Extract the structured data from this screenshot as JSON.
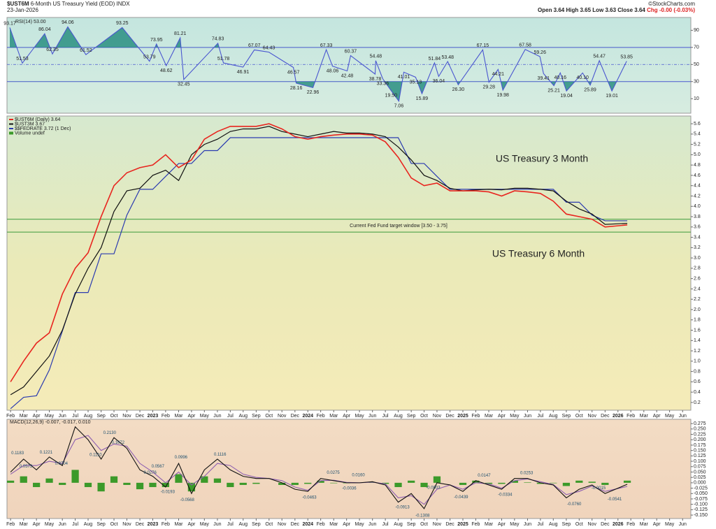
{
  "header": {
    "symbol": "$UST6M",
    "name": "6-Month US Treasury Yield (EOD)",
    "exchange": "INDX",
    "date": "23-Jan-2026",
    "credit": "©StockCharts.com",
    "quote": "Open 3.64 High 3.65 Low 3.63 Close 3.64",
    "change": "Chg -0.00 (-0.03%)"
  },
  "x_axis": {
    "xlim": [
      2022.06,
      2026.47
    ],
    "xticks": [
      {
        "value": 2022.083,
        "label": "Feb"
      },
      {
        "value": 2022.167,
        "label": "Mar"
      },
      {
        "value": 2022.25,
        "label": "Apr"
      },
      {
        "value": 2022.333,
        "label": "May"
      },
      {
        "value": 2022.417,
        "label": "Jun"
      },
      {
        "value": 2022.5,
        "label": "Jul"
      },
      {
        "value": 2022.583,
        "label": "Aug"
      },
      {
        "value": 2022.667,
        "label": "Sep"
      },
      {
        "value": 2022.75,
        "label": "Oct"
      },
      {
        "value": 2022.833,
        "label": "Nov"
      },
      {
        "value": 2022.917,
        "label": "Dec"
      },
      2023,
      {
        "value": 2023.083,
        "label": "Feb"
      },
      {
        "value": 2023.167,
        "label": "Mar"
      },
      {
        "value": 2023.25,
        "label": "Apr"
      },
      {
        "value": 2023.333,
        "label": "May"
      },
      {
        "value": 2023.417,
        "label": "Jun"
      },
      {
        "value": 2023.5,
        "label": "Jul"
      },
      {
        "value": 2023.583,
        "label": "Aug"
      },
      {
        "value": 2023.667,
        "label": "Sep"
      },
      {
        "value": 2023.75,
        "label": "Oct"
      },
      {
        "value": 2023.833,
        "label": "Nov"
      },
      {
        "value": 2023.917,
        "label": "Dec"
      },
      2024,
      {
        "value": 2024.083,
        "label": "Feb"
      },
      {
        "value": 2024.167,
        "label": "Mar"
      },
      {
        "value": 2024.25,
        "label": "Apr"
      },
      {
        "value": 2024.333,
        "label": "May"
      },
      {
        "value": 2024.417,
        "label": "Jun"
      },
      {
        "value": 2024.5,
        "label": "Jul"
      },
      {
        "value": 2024.583,
        "label": "Aug"
      },
      {
        "value": 2024.667,
        "label": "Sep"
      },
      {
        "value": 2024.75,
        "label": "Oct"
      },
      {
        "value": 2024.833,
        "label": "Nov"
      },
      {
        "value": 2024.917,
        "label": "Dec"
      },
      2025,
      {
        "value": 2025.083,
        "label": "Feb"
      },
      {
        "value": 2025.167,
        "label": "Mar"
      },
      {
        "value": 2025.25,
        "label": "Apr"
      },
      {
        "value": 2025.333,
        "label": "May"
      },
      {
        "value": 2025.417,
        "label": "Jun"
      },
      {
        "value": 2025.5,
        "label": "Jul"
      },
      {
        "value": 2025.583,
        "label": "Aug"
      },
      {
        "value": 2025.667,
        "label": "Sep"
      },
      {
        "value": 2025.75,
        "label": "Oct"
      },
      {
        "value": 2025.833,
        "label": "Nov"
      },
      {
        "value": 2025.917,
        "label": "Dec"
      },
      2026,
      {
        "value": 2026.083,
        "label": "Feb"
      },
      {
        "value": 2026.167,
        "label": "Mar"
      },
      {
        "value": 2026.25,
        "label": "Apr"
      },
      {
        "value": 2026.333,
        "label": "May"
      },
      {
        "value": 2026.417,
        "label": "Jun"
      }
    ]
  },
  "chart_data": [
    {
      "type": "line",
      "title": "RSI(14) 53.00",
      "ylim": [
        -7,
        105
      ],
      "yticks": [
        10,
        30,
        50,
        70,
        90
      ],
      "levels": [
        70,
        30
      ],
      "midline": 50,
      "fill_color": "#1f8a7a",
      "series": [
        {
          "color": "#4a56d0",
          "x": [
            2022.078,
            2022.159,
            2022.303,
            2022.353,
            2022.452,
            2022.569,
            2022.803,
            2022.979,
            2023.024,
            2023.087,
            2023.177,
            2023.2,
            2023.42,
            2023.456,
            2023.582,
            2023.655,
            2023.749,
            2023.907,
            2023.925,
            2024.033,
            2024.119,
            2024.159,
            2024.254,
            2024.276,
            2024.434,
            2024.438,
            2024.483,
            2024.537,
            2024.587,
            2024.619,
            2024.695,
            2024.736,
            2024.817,
            2024.844,
            2024.902,
            2024.97,
            2025.128,
            2025.168,
            2025.227,
            2025.258,
            2025.402,
            2025.497,
            2025.52,
            2025.587,
            2025.628,
            2025.668,
            2025.772,
            2025.821,
            2025.88,
            2025.961,
            2026.056
          ],
          "values": [
            93.17,
            51.53,
            86.04,
            62.35,
            94.06,
            61.52,
            93.25,
            53.79,
            73.95,
            48.62,
            81.21,
            32.45,
            74.83,
            51.78,
            46.91,
            67.07,
            64.43,
            46.57,
            28.16,
            22.96,
            67.33,
            48.06,
            42.48,
            60.37,
            38.78,
            54.48,
            33.36,
            19.5,
            7.06,
            41.01,
            35.13,
            15.89,
            51.84,
            36.04,
            53.48,
            26.3,
            67.15,
            29.28,
            44.21,
            19.98,
            67.58,
            59.26,
            39.41,
            25.21,
            40.16,
            19.04,
            40.1,
            25.89,
            54.47,
            19.01,
            53.85
          ],
          "value_labels": [
            "93.17",
            "51.53",
            "86.04",
            "62.35",
            "94.06",
            "61.52",
            "93.25",
            "53.79",
            "73.95",
            "48.62",
            "81.21",
            "32.45",
            "74.83",
            "51.78",
            "46.91",
            "67.07",
            "64.43",
            "46.57",
            "28.16",
            "22.96",
            "67.33",
            "48.06",
            "42.48",
            "60.37",
            "38.78",
            "54.48",
            "33.36",
            "19.50",
            "7.06",
            "41.01",
            "35.13",
            "15.89",
            "51.84",
            "36.04",
            "53.48",
            "26.30",
            "67.15",
            "29.28",
            "44.21",
            "19.98",
            "67.58",
            "59.26",
            "39.41",
            "25.21",
            "40.16",
            "19.04",
            "40.10",
            "25.89",
            "54.47",
            "19.01",
            "53.85"
          ]
        }
      ]
    },
    {
      "type": "line",
      "ylim": [
        0.05,
        5.75
      ],
      "yticks": [
        0.2,
        0.4,
        0.6,
        0.8,
        {
          "value": 1,
          "label": "1.0"
        },
        1.2,
        1.4,
        1.6,
        1.8,
        {
          "value": 2,
          "label": "2.0"
        },
        2.2,
        2.4,
        2.6,
        2.8,
        {
          "value": 3,
          "label": "3.0"
        },
        3.2,
        3.4,
        3.6,
        3.8,
        {
          "value": 4,
          "label": "4.0"
        },
        4.2,
        4.4,
        4.6,
        4.8,
        {
          "value": 5,
          "label": "5.0"
        },
        5.2,
        5.4,
        5.6
      ],
      "x": [
        2022.083,
        2022.167,
        2022.25,
        2022.333,
        2022.417,
        2022.5,
        2022.583,
        2022.667,
        2022.75,
        2022.833,
        2022.917,
        2023,
        2023.083,
        2023.167,
        2023.25,
        2023.333,
        2023.417,
        2023.5,
        2023.583,
        2023.667,
        2023.75,
        2023.833,
        2023.917,
        2024,
        2024.083,
        2024.167,
        2024.25,
        2024.333,
        2024.417,
        2024.5,
        2024.583,
        2024.667,
        2024.75,
        2024.833,
        2024.917,
        2025,
        2025.083,
        2025.167,
        2025.25,
        2025.333,
        2025.417,
        2025.5,
        2025.583,
        2025.667,
        2025.75,
        2025.833,
        2025.917,
        2026.06
      ],
      "series": [
        {
          "name": "$UST6M (Daily) 3.64",
          "color": "#e8251f",
          "values": [
            0.6,
            1.0,
            1.35,
            1.55,
            2.3,
            2.8,
            3.1,
            3.8,
            4.4,
            4.65,
            4.75,
            4.8,
            5.0,
            4.75,
            4.9,
            5.3,
            5.45,
            5.55,
            5.55,
            5.55,
            5.6,
            5.5,
            5.35,
            5.3,
            5.35,
            5.38,
            5.4,
            5.4,
            5.38,
            5.25,
            4.95,
            4.55,
            4.4,
            4.45,
            4.3,
            4.3,
            4.3,
            4.28,
            4.2,
            4.3,
            4.28,
            4.25,
            4.1,
            3.85,
            3.8,
            3.75,
            3.6,
            3.64
          ]
        },
        {
          "name": "$UST3M 3.67",
          "color": "#111111",
          "values": [
            0.35,
            0.5,
            0.8,
            1.1,
            1.6,
            2.3,
            2.8,
            3.2,
            3.9,
            4.3,
            4.35,
            4.6,
            4.7,
            4.5,
            5.0,
            5.2,
            5.3,
            5.45,
            5.5,
            5.5,
            5.55,
            5.45,
            5.4,
            5.35,
            5.4,
            5.45,
            5.42,
            5.42,
            5.4,
            5.35,
            5.15,
            4.9,
            4.6,
            4.5,
            4.35,
            4.3,
            4.32,
            4.33,
            4.32,
            4.35,
            4.35,
            4.33,
            4.3,
            4.1,
            3.95,
            3.85,
            3.65,
            3.67
          ]
        },
        {
          "name": "$$FEDRATE 3.72 (1 Dec)",
          "color": "#2b3bb0",
          "values": [
            0.08,
            0.3,
            0.33,
            0.83,
            1.58,
            2.33,
            2.33,
            3.08,
            3.08,
            3.83,
            4.33,
            4.33,
            4.58,
            4.83,
            4.83,
            5.08,
            5.08,
            5.33,
            5.33,
            5.33,
            5.33,
            5.33,
            5.33,
            5.33,
            5.33,
            5.33,
            5.33,
            5.33,
            5.33,
            5.33,
            5.33,
            4.83,
            4.83,
            4.58,
            4.33,
            4.33,
            4.33,
            4.33,
            4.33,
            4.33,
            4.33,
            4.33,
            4.33,
            4.08,
            4.08,
            3.83,
            3.72,
            3.72
          ]
        }
      ],
      "volume_note": "Volume undef",
      "target_window": {
        "label": "Current Fed Fund target window [3.50 - 3.75]",
        "values": [
          3.5,
          3.75
        ],
        "color": "#3a9a3a"
      },
      "annotations": [
        {
          "text": "US Treasury 3 Month",
          "color": "#222222"
        },
        {
          "text": "US Treasury 6 Month",
          "color": "#e8251f"
        }
      ]
    },
    {
      "type": "line",
      "title": "MACD(12,26,9) -0.007, -0.017, 0.010",
      "ylim": [
        -0.166,
        0.295
      ],
      "yticks": [
        {
          "value": -0.15,
          "label": "-0.150"
        },
        -0.125,
        {
          "value": -0.1,
          "label": "-0.100"
        },
        -0.075,
        {
          "value": -0.05,
          "label": "-0.050"
        },
        -0.025,
        {
          "value": 0,
          "label": "0.000"
        },
        0.025,
        {
          "value": 0.05,
          "label": "0.050"
        },
        0.075,
        {
          "value": 0.1,
          "label": "0.100"
        },
        0.125,
        {
          "value": 0.15,
          "label": "0.150"
        },
        0.175,
        {
          "value": 0.2,
          "label": "0.200"
        },
        0.225,
        {
          "value": 0.25,
          "label": "0.250"
        },
        0.275
      ],
      "x": [
        2022.083,
        2022.167,
        2022.25,
        2022.333,
        2022.417,
        2022.5,
        2022.583,
        2022.667,
        2022.75,
        2022.833,
        2022.917,
        2023,
        2023.083,
        2023.167,
        2023.25,
        2023.333,
        2023.417,
        2023.5,
        2023.583,
        2023.667,
        2023.75,
        2023.833,
        2023.917,
        2024,
        2024.083,
        2024.167,
        2024.25,
        2024.333,
        2024.417,
        2024.5,
        2024.583,
        2024.667,
        2024.75,
        2024.833,
        2024.917,
        2025,
        2025.083,
        2025.167,
        2025.25,
        2025.333,
        2025.417,
        2025.5,
        2025.583,
        2025.667,
        2025.75,
        2025.833,
        2025.917,
        2026.06
      ],
      "series": [
        {
          "color": "#111111",
          "values": [
            0.05,
            0.11,
            0.06,
            0.12,
            0.08,
            0.26,
            0.2,
            0.11,
            0.21,
            0.16,
            0.06,
            0.03,
            -0.02,
            0.09,
            -0.05,
            0.06,
            0.11,
            0.06,
            0.03,
            0.02,
            0.02,
            0.0,
            -0.03,
            -0.04,
            0.02,
            0.01,
            0.0,
            0.0,
            0.005,
            -0.01,
            -0.09,
            -0.05,
            -0.12,
            0.0,
            -0.01,
            -0.04,
            0.01,
            -0.01,
            -0.03,
            0.02,
            0.02,
            0.0,
            -0.01,
            -0.07,
            -0.03,
            -0.01,
            -0.05,
            -0.007
          ]
        },
        {
          "color": "#8e5fb0",
          "values": [
            0.04,
            0.08,
            0.08,
            0.1,
            0.09,
            0.2,
            0.22,
            0.15,
            0.18,
            0.17,
            0.09,
            0.05,
            0.0,
            0.05,
            -0.01,
            0.03,
            0.09,
            0.08,
            0.04,
            0.025,
            0.02,
            0.01,
            -0.02,
            -0.035,
            0.01,
            0.012,
            0.002,
            0.0,
            0.003,
            -0.005,
            -0.07,
            -0.06,
            -0.1,
            -0.03,
            -0.01,
            -0.03,
            0.0,
            -0.005,
            -0.025,
            0.01,
            0.018,
            0.005,
            -0.008,
            -0.055,
            -0.04,
            -0.015,
            -0.04,
            -0.017
          ]
        }
      ],
      "histogram": {
        "color": "#3c9a2a",
        "values": [
          0.01,
          0.03,
          -0.02,
          0.02,
          -0.01,
          0.06,
          -0.02,
          -0.04,
          0.03,
          -0.01,
          -0.03,
          -0.02,
          -0.02,
          0.04,
          -0.04,
          0.03,
          0.02,
          -0.02,
          -0.01,
          -0.005,
          0,
          -0.01,
          -0.01,
          -0.005,
          0.01,
          -0.002,
          -0.002,
          0,
          0.002,
          -0.005,
          -0.02,
          0.01,
          -0.02,
          0.03,
          0,
          -0.01,
          0.01,
          -0.005,
          -0.005,
          0.01,
          0.002,
          -0.005,
          -0.002,
          -0.015,
          0.01,
          0.005,
          -0.01,
          0.01
        ]
      },
      "labels": {
        "x": [
          2022.128,
          2022.182,
          2022.312,
          2022.411,
          2022.632,
          2022.722,
          2022.776,
          2022.983,
          2023.033,
          2023.096,
          2023.182,
          2023.222,
          2023.434,
          2024.01,
          2024.164,
          2024.267,
          2024.326,
          2024.61,
          2024.74,
          2024.808,
          2024.988,
          2025.137,
          2025.272,
          2025.411,
          2025.718,
          2025.875,
          2025.979
        ],
        "values": [
          0.1183,
          0.0573,
          0.1221,
          0.0704,
          0.111,
          0.213,
          0.1672,
          0.0276,
          0.0567,
          -0.0193,
          0.0996,
          -0.0568,
          0.1116,
          -0.0463,
          0.0275,
          -0.0036,
          0.016,
          -0.0913,
          -0.1308,
          -0.0003,
          -0.0439,
          0.0147,
          -0.0334,
          0.0253,
          -0.076,
          -0.0015,
          -0.0541
        ],
        "value_labels": [
          "0.1183",
          "0.0573",
          "0.1221",
          "0.0704",
          "0.1110",
          "0.2130",
          "0.1672",
          "0.0276",
          "0.0567",
          "-0.0193",
          "0.0996",
          "-0.0568",
          "0.1116",
          "-0.0463",
          "0.0275",
          "-0.0036",
          "0.0160",
          "-0.0913",
          "-0.1308",
          "-0.0003",
          "-0.0439",
          "0.0147",
          "-0.0334",
          "0.0253",
          "-0.0760",
          "-0.0015",
          "-0.0541"
        ]
      }
    }
  ]
}
